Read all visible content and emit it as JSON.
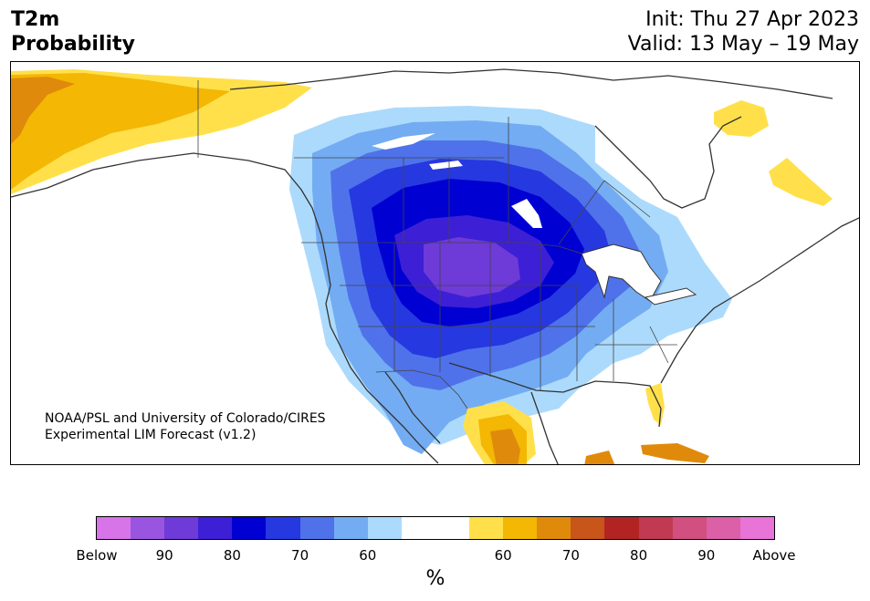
{
  "title": {
    "left_line1": "T2m",
    "left_line2": "Probability",
    "init": "Init: Thu 27 Apr 2023",
    "valid": "Valid: 13 May – 19 May"
  },
  "credit": {
    "line1": "NOAA/PSL and University of Colorado/CIRES",
    "line2": "Experimental LIM Forecast (v1.2)"
  },
  "colorbar": {
    "unit": "%",
    "tick_labels": [
      "Below",
      "90",
      "80",
      "70",
      "60",
      "60",
      "70",
      "80",
      "90",
      "Above"
    ],
    "colors": [
      "#d674e8",
      "#9a55e0",
      "#6e3ad8",
      "#3d1fd6",
      "#0000d2",
      "#2638e0",
      "#4f72ea",
      "#73acf2",
      "#acdafc",
      "#ffffff",
      "#ffffff",
      "#ffe04a",
      "#f3b704",
      "#e08a0c",
      "#c8561a",
      "#b22424",
      "#c23a52",
      "#d15080",
      "#db60a8",
      "#e874d8"
    ]
  },
  "map": {
    "colors": {
      "cold_60": "#acdafc",
      "cold_65": "#73acf2",
      "cold_70": "#4f72ea",
      "cold_75": "#2638e0",
      "cold_80": "#0000d2",
      "cold_85": "#3d1fd6",
      "cold_90": "#6e3ad8",
      "warm_60": "#ffe04a",
      "warm_65": "#f3b704",
      "warm_70": "#e08a0c",
      "land_outline": "#333333"
    }
  }
}
